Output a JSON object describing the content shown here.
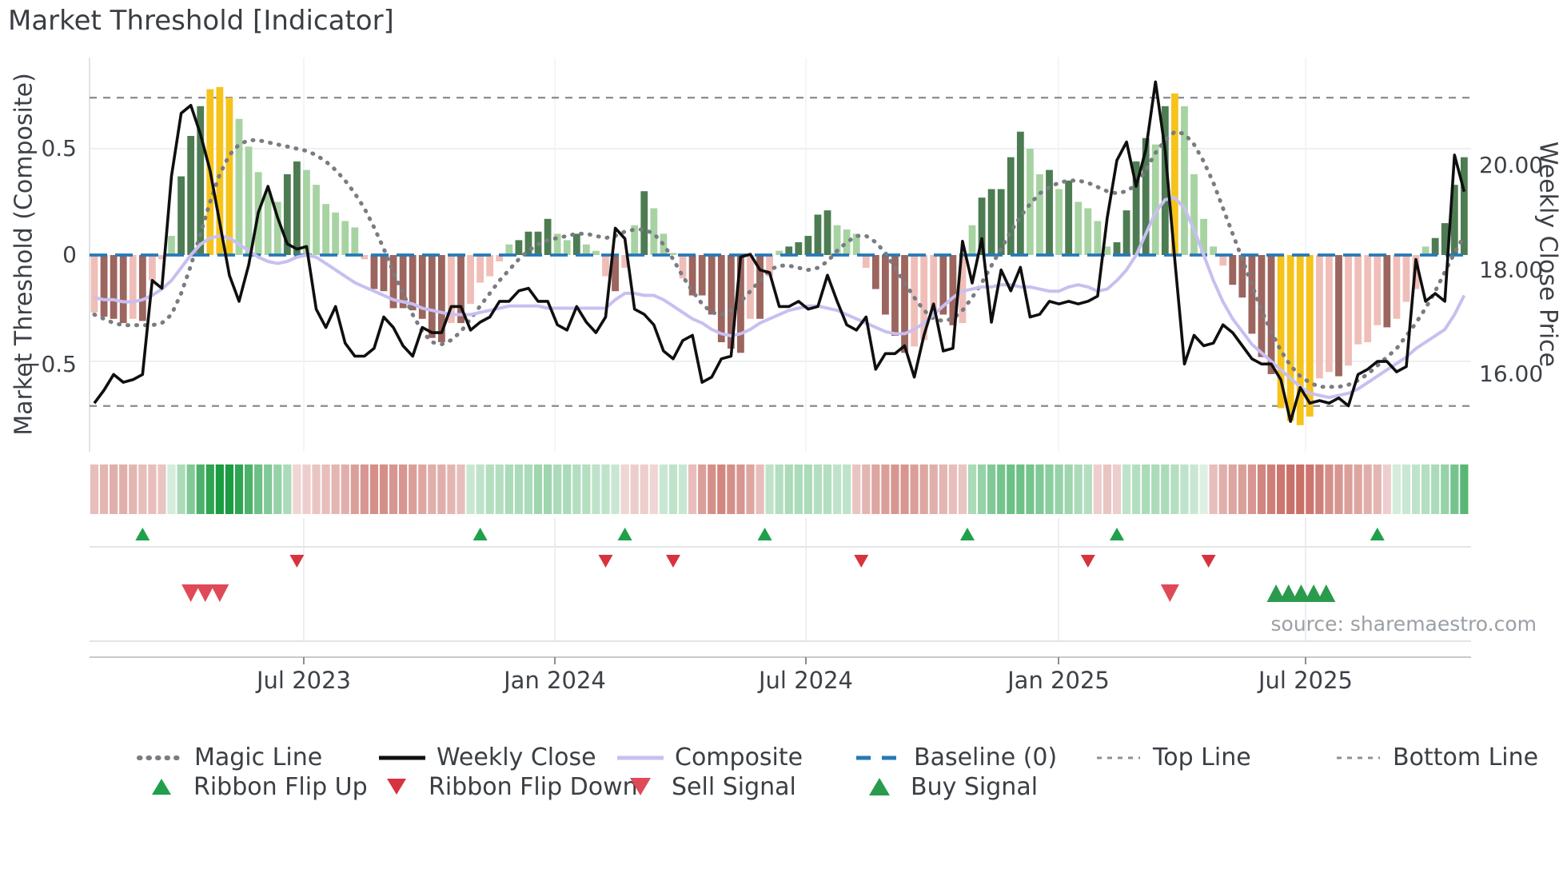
{
  "header": {
    "title": "Market Threshold [Indicator]"
  },
  "source_credit": "source: sharemaestro.com",
  "axes": {
    "left_title": "Market Threshold (Composite)",
    "right_title": "Weekly Close Price",
    "left_ticks": [
      {
        "label": "0.5",
        "value": 0.5
      },
      {
        "label": "0",
        "value": 0
      },
      {
        "label": "−0.5",
        "value": -0.5
      }
    ],
    "right_ticks": [
      {
        "label": "20.00",
        "value": 20
      },
      {
        "label": "18.00",
        "value": 18
      },
      {
        "label": "16.00",
        "value": 16
      }
    ],
    "x_ticks": [
      {
        "label": "Jul 2023",
        "week": 21.71
      },
      {
        "label": "Jan 2024",
        "week": 47.74
      },
      {
        "label": "Jul 2024",
        "week": 73.76
      },
      {
        "label": "Jan 2025",
        "week": 99.95
      },
      {
        "label": "Jul 2025",
        "week": 125.56
      }
    ]
  },
  "legend": {
    "row1": [
      {
        "label": "Magic Line",
        "swatch": "dotted-gray"
      },
      {
        "label": "Weekly Close",
        "swatch": "solid-black"
      },
      {
        "label": "Composite",
        "swatch": "solid-lavender"
      },
      {
        "label": "Baseline (0)",
        "swatch": "dashed-blue"
      },
      {
        "label": "Top Line",
        "swatch": "finedot-gray"
      },
      {
        "label": "Bottom Line",
        "swatch": "finedot-gray"
      }
    ],
    "row2": [
      {
        "label": "Ribbon Flip Up",
        "swatch": "triangle-up-green"
      },
      {
        "label": "Ribbon Flip Down",
        "swatch": "triangle-down-red"
      },
      {
        "label": "Sell Signal",
        "swatch": "triangle-down-rose"
      },
      {
        "label": "Buy Signal",
        "swatch": "triangle-up-green"
      }
    ]
  },
  "colors": {
    "bar_green_dark": "#4d7c52",
    "bar_green_light": "#a7d3a2",
    "bar_red_dark": "#9c655e",
    "bar_red_light": "#f0beb8",
    "bar_yellow": "#f6c31b",
    "weekly_close": "#0f0f0f",
    "magic_line": "#797c82",
    "composite": "#c8bff0",
    "baseline": "#2779b6",
    "threshold_lines": "#8d9096",
    "ribbon_green": "#1a9c41",
    "ribbon_red": "#bd5047",
    "flip_up": "#1fa04a",
    "flip_down": "#d7333f",
    "sell": "#e04a58",
    "buy": "#2a9b4d"
  },
  "chart_data": {
    "type": "mixed-bar-line",
    "title": "Market Threshold [Indicator]",
    "x_unit": "weeks",
    "n_weeks": 143,
    "left_axis": {
      "label": "Market Threshold (Composite)",
      "ticks": [
        0.5,
        0,
        -0.5
      ],
      "ylim": [
        -0.92,
        0.93
      ]
    },
    "right_axis": {
      "label": "Weekly Close Price",
      "ticks": [
        20,
        18,
        16
      ],
      "ylim": [
        14.4,
        22.3
      ]
    },
    "baseline": 0,
    "top_line": 0.74,
    "bottom_line": -0.71,
    "series": {
      "threshold_bars": [
        -0.27,
        -0.29,
        -0.3,
        -0.32,
        -0.3,
        -0.31,
        -0.12,
        -0.02,
        0.09,
        0.37,
        0.56,
        0.7,
        0.78,
        0.79,
        0.74,
        0.64,
        0.51,
        0.39,
        0.3,
        0.25,
        0.38,
        0.44,
        0.4,
        0.33,
        0.24,
        0.2,
        0.16,
        0.13,
        -0.02,
        -0.16,
        -0.17,
        -0.25,
        -0.25,
        -0.26,
        -0.3,
        -0.39,
        -0.41,
        -0.32,
        -0.32,
        -0.23,
        -0.13,
        -0.1,
        -0.03,
        0.05,
        0.07,
        0.11,
        0.11,
        0.17,
        0.1,
        0.07,
        0.1,
        0.05,
        0.02,
        -0.1,
        -0.17,
        -0.06,
        0.14,
        0.3,
        0.22,
        0.1,
        0.01,
        -0.11,
        -0.19,
        -0.19,
        -0.28,
        -0.41,
        -0.44,
        -0.46,
        -0.3,
        -0.3,
        -0.1,
        0.02,
        0.04,
        0.06,
        0.09,
        0.19,
        0.21,
        0.14,
        0.12,
        0.1,
        -0.06,
        -0.16,
        -0.28,
        -0.38,
        -0.46,
        -0.43,
        -0.4,
        -0.28,
        -0.28,
        -0.33,
        -0.32,
        0.14,
        0.27,
        0.31,
        0.31,
        0.46,
        0.58,
        0.5,
        0.38,
        0.4,
        0.31,
        0.35,
        0.25,
        0.22,
        0.16,
        0.04,
        0.06,
        0.21,
        0.44,
        0.55,
        0.52,
        0.7,
        0.76,
        0.7,
        0.38,
        0.17,
        0.04,
        -0.05,
        -0.14,
        -0.2,
        -0.37,
        -0.48,
        -0.56,
        -0.72,
        -0.78,
        -0.8,
        -0.76,
        -0.58,
        -0.55,
        -0.57,
        -0.52,
        -0.42,
        -0.41,
        -0.33,
        -0.34,
        -0.3,
        -0.22,
        -0.16,
        0.04,
        0.08,
        0.15,
        0.33,
        0.46
      ],
      "weekly_close": [
        15.45,
        15.7,
        16.0,
        15.85,
        15.9,
        16.0,
        17.8,
        17.65,
        19.8,
        21.0,
        21.15,
        20.6,
        19.9,
        18.9,
        17.9,
        17.4,
        18.1,
        19.1,
        19.6,
        19.0,
        18.5,
        18.4,
        18.45,
        17.25,
        16.9,
        17.3,
        16.6,
        16.35,
        16.35,
        16.5,
        17.1,
        16.9,
        16.55,
        16.35,
        16.9,
        16.8,
        16.8,
        17.3,
        17.3,
        16.85,
        17.0,
        17.1,
        17.4,
        17.4,
        17.6,
        17.65,
        17.4,
        17.4,
        16.95,
        16.85,
        17.3,
        17.0,
        16.8,
        17.1,
        18.8,
        18.6,
        17.25,
        17.15,
        16.95,
        16.45,
        16.3,
        16.65,
        16.75,
        15.85,
        15.95,
        16.3,
        16.35,
        18.25,
        18.3,
        18.0,
        17.95,
        17.3,
        17.3,
        17.4,
        17.25,
        17.3,
        17.9,
        17.4,
        16.95,
        16.85,
        17.1,
        16.1,
        16.4,
        16.4,
        16.55,
        15.95,
        16.75,
        17.35,
        16.45,
        16.5,
        18.55,
        17.75,
        18.6,
        17.0,
        18.0,
        17.6,
        18.05,
        17.1,
        17.15,
        17.4,
        17.35,
        17.4,
        17.35,
        17.4,
        17.5,
        19.0,
        20.1,
        20.45,
        19.6,
        20.3,
        21.6,
        20.3,
        18.2,
        16.2,
        16.75,
        16.55,
        16.6,
        16.95,
        16.8,
        16.55,
        16.3,
        16.2,
        16.2,
        15.9,
        15.1,
        15.75,
        15.45,
        15.5,
        15.45,
        15.55,
        15.4,
        16.0,
        16.1,
        16.25,
        16.25,
        16.05,
        16.15,
        18.2,
        17.4,
        17.55,
        17.4,
        20.2,
        19.5
      ],
      "magic_line": [
        -0.28,
        -0.3,
        -0.32,
        -0.33,
        -0.33,
        -0.33,
        -0.33,
        -0.32,
        -0.28,
        -0.18,
        -0.05,
        0.1,
        0.25,
        0.38,
        0.47,
        0.52,
        0.54,
        0.54,
        0.53,
        0.52,
        0.51,
        0.5,
        0.49,
        0.47,
        0.44,
        0.4,
        0.35,
        0.29,
        0.22,
        0.13,
        0.03,
        -0.08,
        -0.18,
        -0.28,
        -0.36,
        -0.41,
        -0.42,
        -0.4,
        -0.36,
        -0.3,
        -0.24,
        -0.18,
        -0.12,
        -0.07,
        -0.02,
        0.02,
        0.05,
        0.07,
        0.08,
        0.09,
        0.1,
        0.1,
        0.09,
        0.08,
        0.09,
        0.11,
        0.12,
        0.12,
        0.1,
        0.05,
        -0.02,
        -0.1,
        -0.17,
        -0.23,
        -0.27,
        -0.28,
        -0.26,
        -0.22,
        -0.17,
        -0.12,
        -0.07,
        -0.05,
        -0.05,
        -0.06,
        -0.07,
        -0.06,
        -0.03,
        0.02,
        0.06,
        0.09,
        0.09,
        0.06,
        0.01,
        -0.06,
        -0.13,
        -0.2,
        -0.26,
        -0.3,
        -0.31,
        -0.3,
        -0.26,
        -0.2,
        -0.13,
        -0.05,
        0.03,
        0.11,
        0.18,
        0.24,
        0.29,
        0.32,
        0.34,
        0.35,
        0.35,
        0.34,
        0.32,
        0.3,
        0.29,
        0.3,
        0.33,
        0.4,
        0.48,
        0.54,
        0.58,
        0.57,
        0.52,
        0.44,
        0.34,
        0.22,
        0.1,
        -0.02,
        -0.14,
        -0.26,
        -0.36,
        -0.45,
        -0.52,
        -0.57,
        -0.6,
        -0.62,
        -0.62,
        -0.62,
        -0.61,
        -0.59,
        -0.56,
        -0.52,
        -0.48,
        -0.44,
        -0.38,
        -0.32,
        -0.25,
        -0.17,
        -0.08,
        0.01,
        0.09
      ],
      "composite": [
        -0.2,
        -0.21,
        -0.21,
        -0.22,
        -0.22,
        -0.21,
        -0.19,
        -0.16,
        -0.12,
        -0.06,
        0.0,
        0.05,
        0.08,
        0.09,
        0.08,
        0.05,
        0.02,
        -0.01,
        -0.03,
        -0.04,
        -0.03,
        -0.01,
        0.0,
        -0.01,
        -0.04,
        -0.07,
        -0.1,
        -0.13,
        -0.15,
        -0.17,
        -0.19,
        -0.21,
        -0.22,
        -0.23,
        -0.25,
        -0.26,
        -0.27,
        -0.28,
        -0.28,
        -0.28,
        -0.27,
        -0.26,
        -0.25,
        -0.24,
        -0.24,
        -0.24,
        -0.24,
        -0.25,
        -0.25,
        -0.25,
        -0.25,
        -0.25,
        -0.25,
        -0.25,
        -0.21,
        -0.18,
        -0.18,
        -0.19,
        -0.19,
        -0.21,
        -0.24,
        -0.27,
        -0.3,
        -0.32,
        -0.35,
        -0.37,
        -0.38,
        -0.37,
        -0.35,
        -0.32,
        -0.3,
        -0.28,
        -0.26,
        -0.25,
        -0.24,
        -0.24,
        -0.25,
        -0.26,
        -0.28,
        -0.3,
        -0.32,
        -0.34,
        -0.36,
        -0.37,
        -0.37,
        -0.35,
        -0.32,
        -0.28,
        -0.24,
        -0.2,
        -0.17,
        -0.16,
        -0.15,
        -0.15,
        -0.14,
        -0.14,
        -0.15,
        -0.15,
        -0.16,
        -0.17,
        -0.17,
        -0.15,
        -0.14,
        -0.15,
        -0.17,
        -0.16,
        -0.12,
        -0.07,
        0.0,
        0.1,
        0.2,
        0.26,
        0.27,
        0.22,
        0.12,
        0.0,
        -0.12,
        -0.22,
        -0.3,
        -0.36,
        -0.42,
        -0.46,
        -0.5,
        -0.54,
        -0.58,
        -0.62,
        -0.65,
        -0.66,
        -0.67,
        -0.66,
        -0.65,
        -0.63,
        -0.6,
        -0.57,
        -0.54,
        -0.51,
        -0.48,
        -0.44,
        -0.41,
        -0.38,
        -0.35,
        -0.28,
        -0.19
      ]
    },
    "yellow_bar_weeks": [
      12,
      13,
      14,
      112,
      123,
      124,
      125,
      126
    ],
    "ribbon": [
      -0.3,
      -0.35,
      -0.4,
      -0.4,
      -0.35,
      -0.3,
      -0.3,
      -0.25,
      0.1,
      0.3,
      0.5,
      0.75,
      0.9,
      1.0,
      1.0,
      0.9,
      0.75,
      0.6,
      0.5,
      0.4,
      0.3,
      -0.15,
      -0.2,
      -0.25,
      -0.3,
      -0.35,
      -0.4,
      -0.5,
      -0.55,
      -0.6,
      -0.6,
      -0.55,
      -0.55,
      -0.5,
      -0.45,
      -0.4,
      -0.4,
      -0.35,
      -0.3,
      0.15,
      0.2,
      0.25,
      0.25,
      0.3,
      0.3,
      0.3,
      0.35,
      0.35,
      0.3,
      0.3,
      0.25,
      0.25,
      0.2,
      0.2,
      0.15,
      -0.15,
      -0.2,
      -0.2,
      -0.15,
      0.15,
      0.2,
      0.15,
      -0.3,
      -0.5,
      -0.6,
      -0.65,
      -0.6,
      -0.55,
      -0.45,
      -0.3,
      0.2,
      0.25,
      0.3,
      0.3,
      0.3,
      0.25,
      0.25,
      0.2,
      0.2,
      -0.25,
      -0.35,
      -0.45,
      -0.5,
      -0.55,
      -0.55,
      -0.5,
      -0.45,
      -0.4,
      -0.35,
      -0.3,
      -0.25,
      0.3,
      0.4,
      0.5,
      0.55,
      0.6,
      0.6,
      0.55,
      0.5,
      0.45,
      0.4,
      0.35,
      0.3,
      0.25,
      -0.2,
      -0.25,
      -0.2,
      0.2,
      0.25,
      0.3,
      0.3,
      0.3,
      0.25,
      0.2,
      0.15,
      0.05,
      -0.3,
      -0.4,
      -0.45,
      -0.5,
      -0.55,
      -0.65,
      -0.7,
      -0.75,
      -0.8,
      -0.8,
      -0.75,
      -0.7,
      -0.6,
      -0.55,
      -0.5,
      -0.45,
      -0.4,
      -0.35,
      -0.2,
      0.1,
      0.15,
      0.2,
      0.25,
      0.3,
      0.4,
      0.55,
      0.7
    ],
    "signals": {
      "ribbon_flip_up_weeks": [
        5,
        40,
        55,
        69.5,
        90.5,
        106,
        133
      ],
      "ribbon_flip_down_weeks": [
        21,
        53,
        60,
        79.5,
        103,
        115.5
      ],
      "sell_weeks": [
        10,
        11.5,
        13,
        111.5
      ],
      "buy_weeks": [
        122.5,
        123.8,
        125.1,
        126.4,
        127.7
      ]
    }
  }
}
